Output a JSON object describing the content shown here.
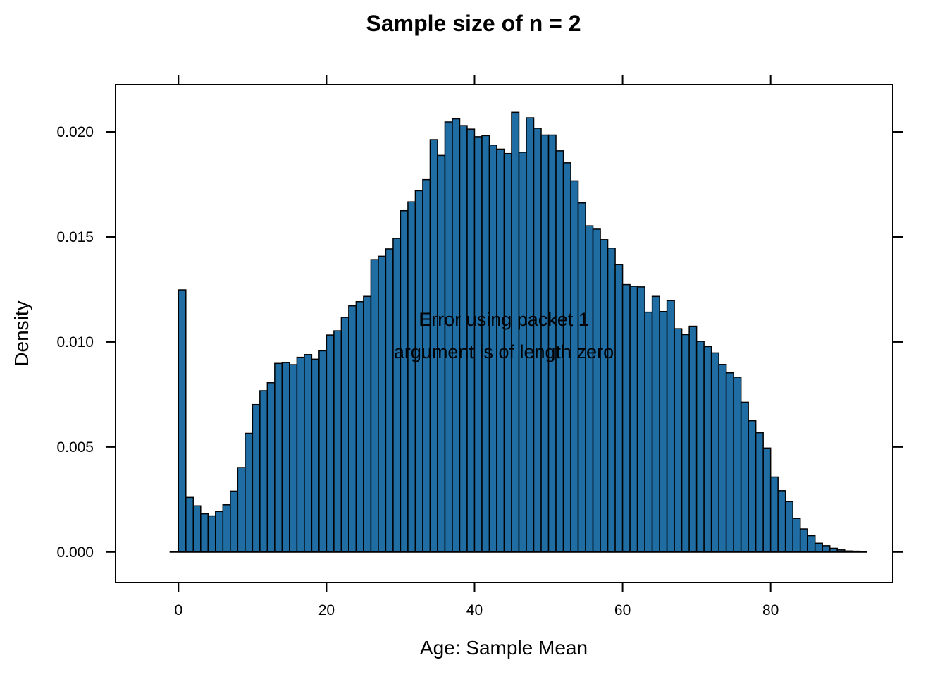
{
  "chart_data": {
    "type": "bar",
    "title": "Sample size of n = 2",
    "xlabel": "Age: Sample Mean",
    "ylabel": "Density",
    "xlim": [
      -8.5,
      96.5
    ],
    "ylim": [
      -0.00145,
      0.02225
    ],
    "xticks": [
      0,
      20,
      40,
      60,
      80
    ],
    "xtick_labels": [
      "0",
      "20",
      "40",
      "60",
      "80"
    ],
    "yticks": [
      0.0,
      0.005,
      0.01,
      0.015,
      0.02
    ],
    "ytick_labels": [
      "0.000",
      "0.005",
      "0.010",
      "0.015",
      "0.020"
    ],
    "bin_start": 0,
    "bin_width": 1,
    "values": [
      0.01248,
      0.0026,
      0.0022,
      0.00182,
      0.00172,
      0.00193,
      0.00225,
      0.0029,
      0.00402,
      0.00565,
      0.00702,
      0.00768,
      0.00806,
      0.00898,
      0.00902,
      0.00892,
      0.00927,
      0.0094,
      0.00918,
      0.00958,
      0.01033,
      0.01053,
      0.01117,
      0.01172,
      0.01192,
      0.01217,
      0.01392,
      0.01408,
      0.01443,
      0.01493,
      0.01625,
      0.01667,
      0.0172,
      0.01773,
      0.01963,
      0.01888,
      0.02047,
      0.02062,
      0.0203,
      0.02013,
      0.01977,
      0.01982,
      0.01937,
      0.01918,
      0.01897,
      0.02093,
      0.01903,
      0.02067,
      0.02017,
      0.01985,
      0.01985,
      0.0191,
      0.01853,
      0.01767,
      0.01662,
      0.01553,
      0.01537,
      0.01487,
      0.01447,
      0.01368,
      0.01273,
      0.01265,
      0.01262,
      0.01142,
      0.01217,
      0.01145,
      0.01197,
      0.01063,
      0.01035,
      0.01075,
      0.01003,
      0.00978,
      0.00948,
      0.00893,
      0.00853,
      0.00832,
      0.00713,
      0.00625,
      0.00568,
      0.00495,
      0.00357,
      0.00292,
      0.0024,
      0.0016,
      0.0011,
      0.00078,
      0.00042,
      0.0003,
      0.00018,
      0.0001,
      5e-05,
      4e-05,
      2e-05
    ],
    "bar_color": "#1f6da3",
    "messages": [
      "Error using packet 1",
      "argument is of length zero"
    ],
    "grid": false,
    "legend": "none"
  }
}
